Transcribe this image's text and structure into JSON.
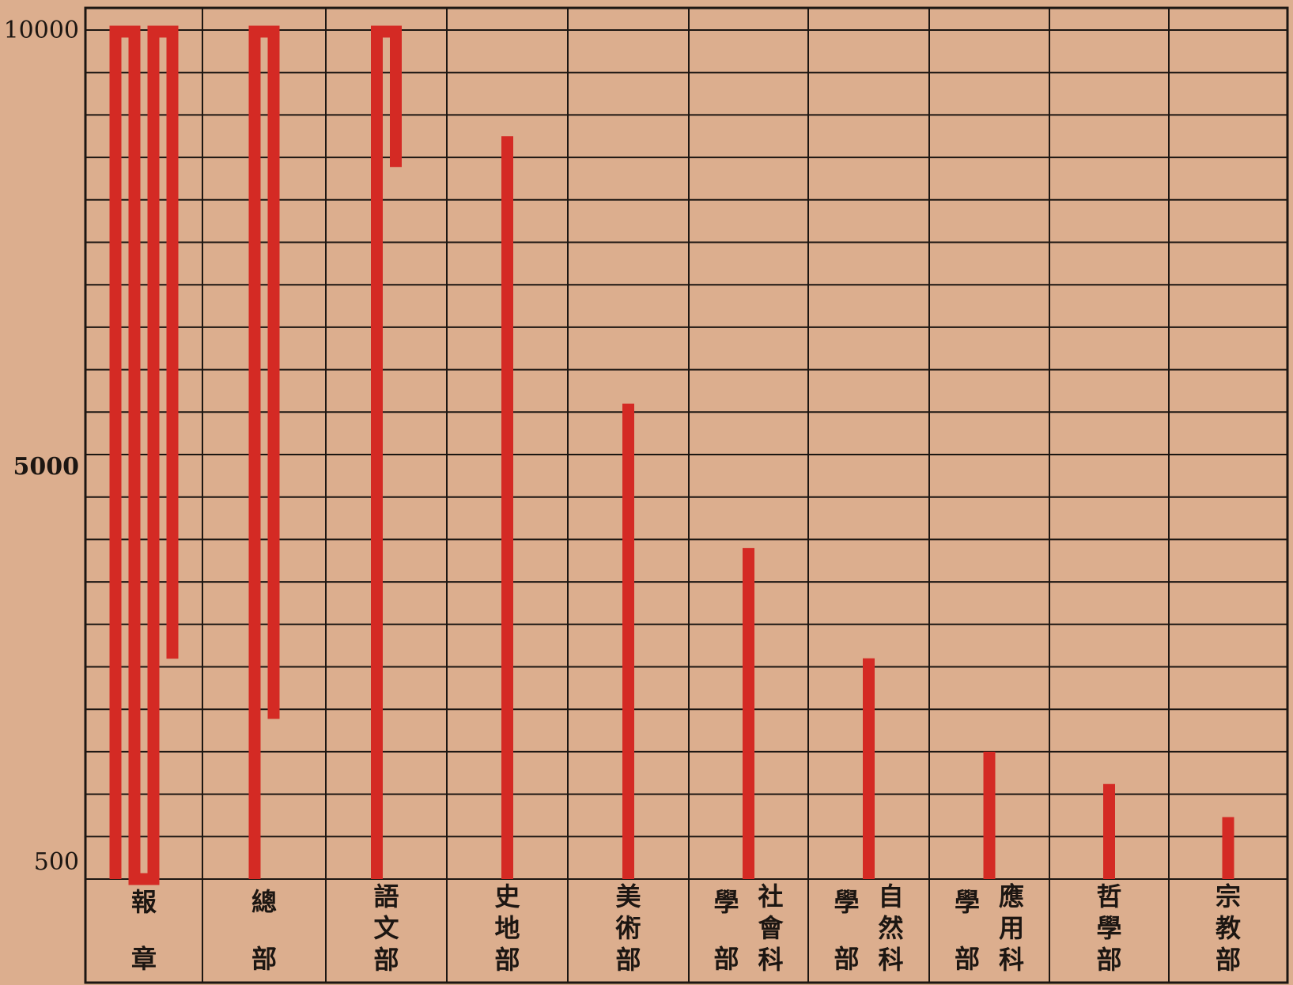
{
  "chart_data": {
    "type": "bar",
    "title": "",
    "xlabel": "",
    "ylabel": "",
    "y_tick_labels": [
      "10000",
      "5000",
      "500"
    ],
    "bar_note": "long bars fold back down in serpentine form; values are the total drawn length in data units",
    "categories": [
      [
        "報",
        "章"
      ],
      [
        "總",
        "部"
      ],
      [
        "語",
        "文",
        "部"
      ],
      [
        "史",
        "地",
        "部"
      ],
      [
        "美",
        "術",
        "部"
      ],
      [
        "社",
        "會",
        "科",
        "學",
        "部"
      ],
      [
        "自",
        "然",
        "科",
        "學",
        "部"
      ],
      [
        "應",
        "用",
        "科",
        "學",
        "部"
      ],
      [
        "哲",
        "學",
        "部"
      ],
      [
        "宗",
        "教",
        "部"
      ]
    ],
    "values": [
      38000,
      18300,
      11800,
      8750,
      5600,
      3900,
      2600,
      1500,
      1120,
      730
    ],
    "colors": {
      "bar": "#d42a24",
      "grid": "#1c1612",
      "background": "#dcae8e",
      "text": "#1c1612"
    }
  }
}
